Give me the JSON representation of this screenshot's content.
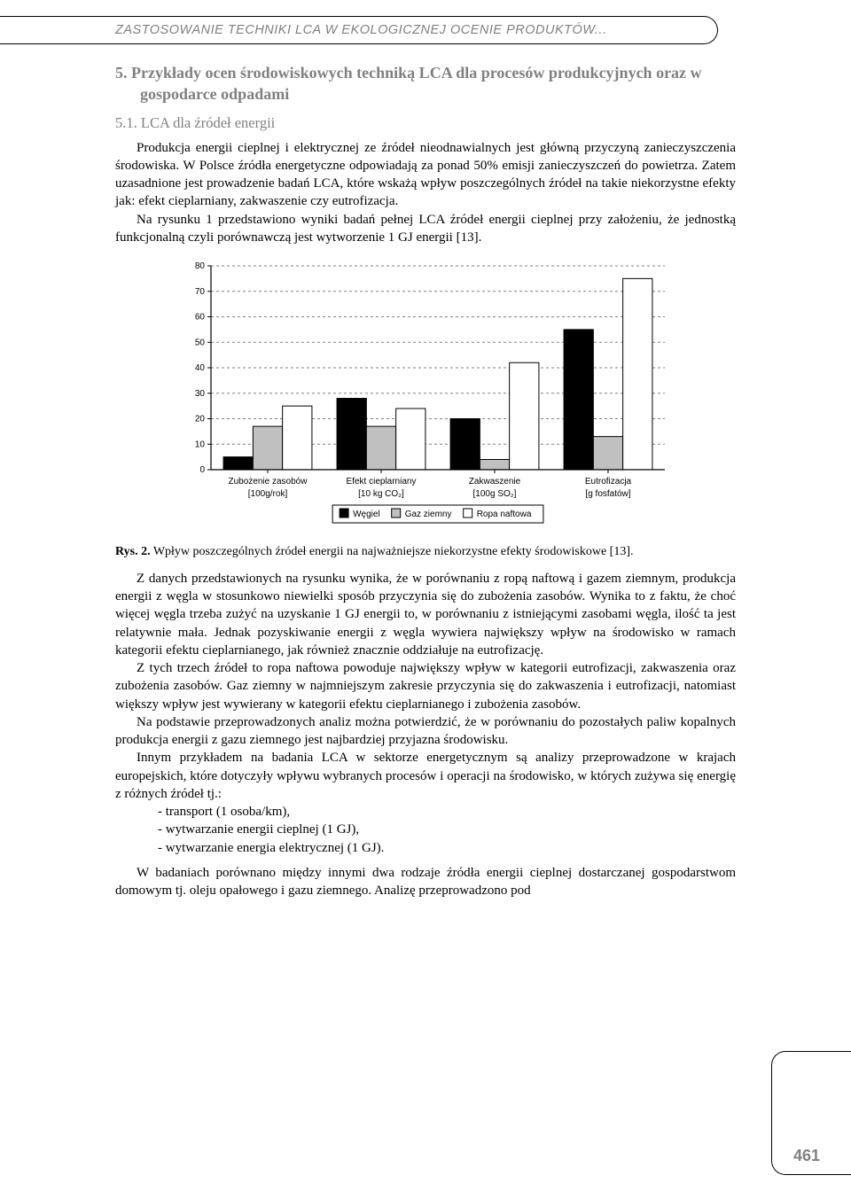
{
  "header": {
    "title": "ZASTOSOWANIE TECHNIKI LCA W EKOLOGICZNEJ OCENIE PRODUKTÓW..."
  },
  "section": {
    "number": "5.",
    "title": "Przykłady ocen środowiskowych techniką LCA dla procesów produkcyjnych oraz w gospodarce odpadami",
    "sub_number": "5.1.",
    "sub_title": "LCA dla źródeł energii"
  },
  "paragraphs": {
    "p1": "Produkcja energii cieplnej i elektrycznej ze źródeł nieodnawialnych jest główną przyczyną zanieczyszczenia środowiska. W Polsce źródła energetyczne odpowiadają za ponad 50% emisji zanieczyszczeń do powietrza. Zatem uzasadnione jest prowadzenie badań LCA, które wskażą wpływ poszczególnych źródeł na takie niekorzystne efekty jak: efekt cieplarniany, zakwaszenie czy eutrofizacja.",
    "p2": "Na rysunku 1 przedstawiono wyniki badań pełnej LCA źródeł energii cieplnej przy założeniu, że jednostką funkcjonalną czyli porównawczą jest wytworzenie 1 GJ energii [13].",
    "p3": "Z danych przedstawionych na rysunku wynika, że w porównaniu z ropą naftową i gazem ziemnym, produkcja energii z węgla w stosunkowo niewielki sposób przyczynia się do zubożenia zasobów. Wynika to z faktu, że choć więcej węgla trzeba zużyć na uzyskanie 1 GJ energii to, w porównaniu z istniejącymi zasobami węgla, ilość ta jest relatywnie mała. Jednak pozyskiwanie energii z węgla wywiera największy wpływ na środowisko w ramach kategorii efektu cieplarnianego, jak również znacznie oddziałuje na eutrofizację.",
    "p4": "Z tych trzech źródeł to ropa naftowa powoduje największy wpływ w kategorii eutrofizacji, zakwaszenia oraz zubożenia zasobów. Gaz ziemny w najmniejszym zakresie przyczynia się do zakwaszenia i eutrofizacji, natomiast większy wpływ jest wywierany w kategorii efektu cieplarnianego i zubożenia zasobów.",
    "p5": "Na podstawie przeprowadzonych analiz można potwierdzić, że w porównaniu do pozostałych paliw kopalnych produkcja energii z gazu ziemnego jest najbardziej przyjazna środowisku.",
    "p6": "Innym przykładem na badania LCA w sektorze energetycznym są analizy przeprowadzone w krajach europejskich, które dotyczyły wpływu wybranych procesów i operacji na środowisko, w których zużywa się energię z różnych źródeł tj.:",
    "list": {
      "i1": "- transport (1 osoba/km),",
      "i2": "- wytwarzanie energii cieplnej (1 GJ),",
      "i3": "- wytwarzanie energia elektrycznej (1 GJ)."
    },
    "p7": "W badaniach porównano między innymi dwa rodzaje źródła energii cieplnej dostarczanej gospodarstwom domowym tj. oleju opałowego i gazu ziemnego. Analizę przeprowadzono pod"
  },
  "figure": {
    "label": "Rys. 2.",
    "caption": "Wpływ poszczególnych źródeł energii na najważniejsze niekorzystne efekty środowiskowe [13]."
  },
  "chart": {
    "type": "bar",
    "font_family": "Arial",
    "label_fontsize": 10,
    "axis_fontsize": 10,
    "ylim": [
      0,
      80
    ],
    "ytick_step": 10,
    "grid_color": "#808080",
    "grid_dash": "3,3",
    "axis_color": "#000000",
    "bar_border_color": "#000000",
    "background_color": "#ffffff",
    "categories": [
      {
        "label_line1": "Zubożenie zasobów",
        "label_line2": "[100g/rok]"
      },
      {
        "label_line1": "Efekt cieplarniany",
        "label_line2": "[10 kg CO₂]"
      },
      {
        "label_line1": "Zakwaszenie",
        "label_line2": "[100g SO₂]"
      },
      {
        "label_line1": "Eutrofizacja",
        "label_line2": "[g fosfatów]"
      }
    ],
    "series": [
      {
        "name": "Węgiel",
        "color": "#000000",
        "values": [
          5,
          28,
          20,
          55
        ]
      },
      {
        "name": "Gaz ziemny",
        "color": "#c0c0c0",
        "values": [
          17,
          17,
          4,
          13
        ]
      },
      {
        "name": "Ropa naftowa",
        "color": "#ffffff",
        "values": [
          25,
          24,
          42,
          75
        ]
      }
    ],
    "bar_width": 0.26,
    "group_gap": 0.22,
    "legend": {
      "border_color": "#000000",
      "background": "#ffffff"
    }
  },
  "page_number": "461"
}
